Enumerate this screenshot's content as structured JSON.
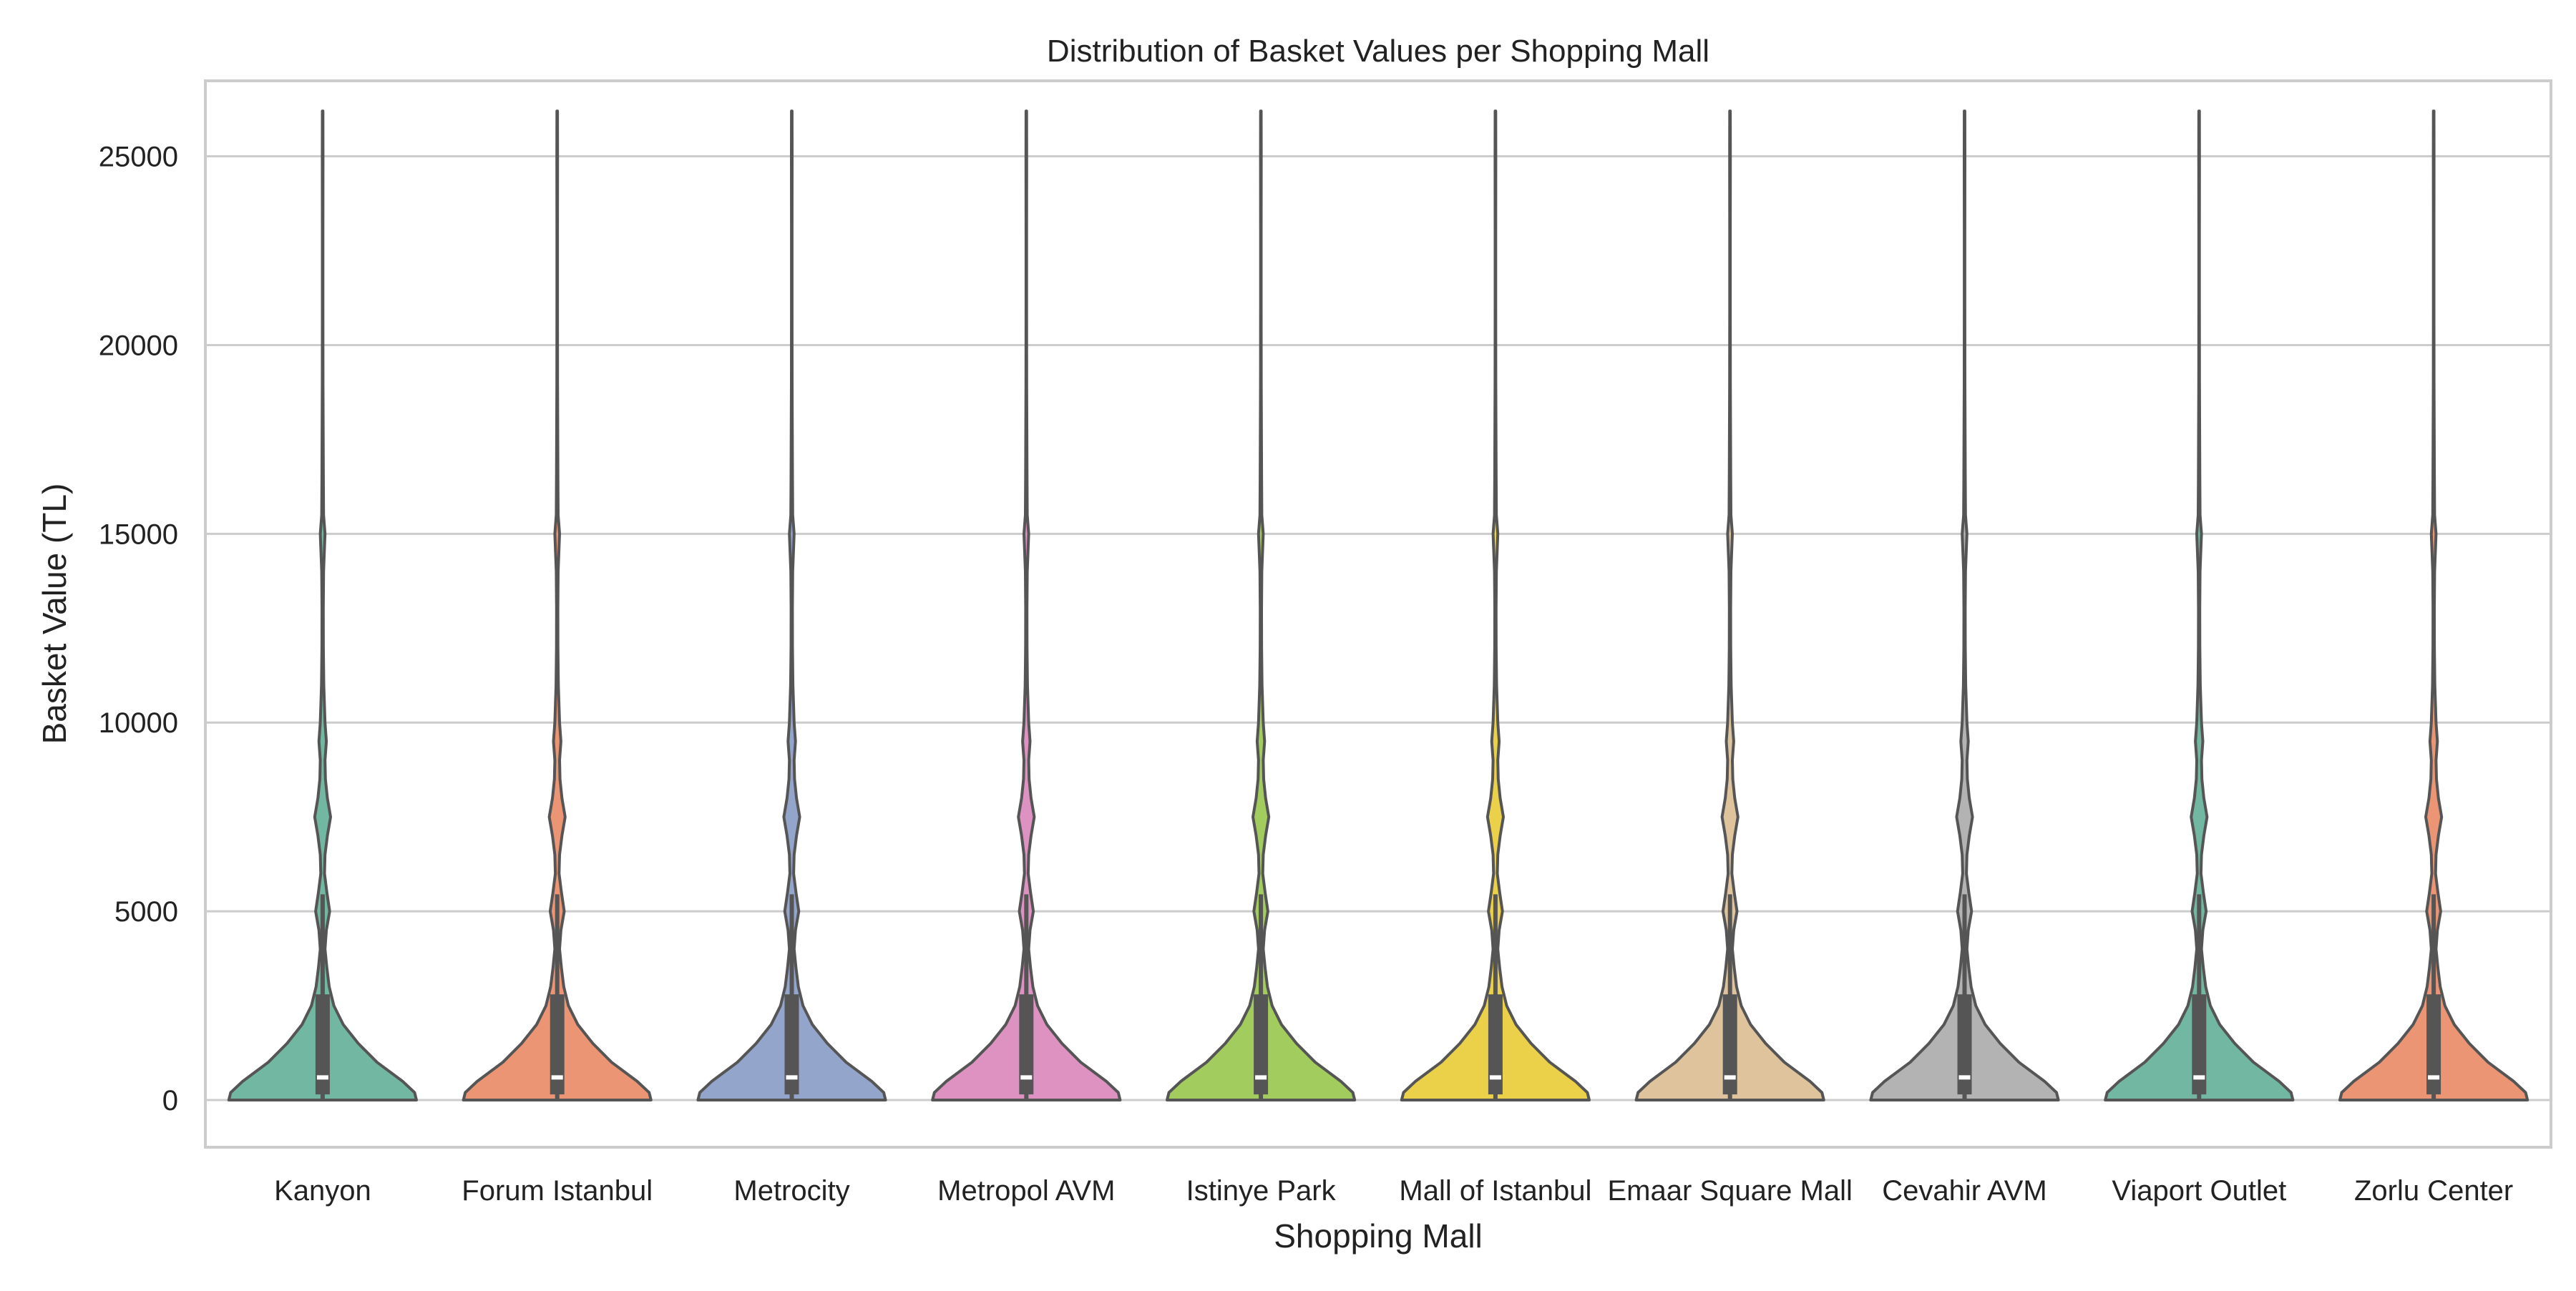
{
  "chart_data": {
    "type": "violin",
    "title": "Distribution of Basket Values per Shopping Mall",
    "xlabel": "Shopping Mall",
    "ylabel": "Basket Value (TL)",
    "ylim": [
      -1250,
      27000
    ],
    "yticks": [
      0,
      5000,
      10000,
      15000,
      20000,
      25000
    ],
    "grid": "horizontal",
    "legend": "none",
    "categories": [
      "Kanyon",
      "Forum Istanbul",
      "Metrocity",
      "Metropol AVM",
      "Istinye Park",
      "Mall of Istanbul",
      "Emaar Square Mall",
      "Cevahir AVM",
      "Viaport Outlet",
      "Zorlu Center"
    ],
    "colors": [
      "#72b7a1",
      "#ec9574",
      "#93a5cb",
      "#de92c2",
      "#a2cc5e",
      "#ebd04a",
      "#dfc39c",
      "#b3b3b3",
      "#72b7a1",
      "#ec9574"
    ],
    "outline_color": "#555555",
    "median_color": "#ffffff",
    "summary": {
      "min": 0,
      "q1": 150,
      "median": 600,
      "q3": 2800,
      "whisker_high": 5450,
      "max": 26200
    },
    "density_profile": [
      {
        "y": 0,
        "w": 1.0
      },
      {
        "y": 200,
        "w": 0.98
      },
      {
        "y": 500,
        "w": 0.85
      },
      {
        "y": 1000,
        "w": 0.58
      },
      {
        "y": 1500,
        "w": 0.38
      },
      {
        "y": 2000,
        "w": 0.22
      },
      {
        "y": 2500,
        "w": 0.12
      },
      {
        "y": 3000,
        "w": 0.07
      },
      {
        "y": 3500,
        "w": 0.045
      },
      {
        "y": 4000,
        "w": 0.025
      },
      {
        "y": 4500,
        "w": 0.04
      },
      {
        "y": 5000,
        "w": 0.075
      },
      {
        "y": 5500,
        "w": 0.045
      },
      {
        "y": 6000,
        "w": 0.02
      },
      {
        "y": 6500,
        "w": 0.025
      },
      {
        "y": 7000,
        "w": 0.05
      },
      {
        "y": 7500,
        "w": 0.085
      },
      {
        "y": 8000,
        "w": 0.05
      },
      {
        "y": 8500,
        "w": 0.03
      },
      {
        "y": 9000,
        "w": 0.025
      },
      {
        "y": 9500,
        "w": 0.04
      },
      {
        "y": 10000,
        "w": 0.025
      },
      {
        "y": 11000,
        "w": 0.012
      },
      {
        "y": 12000,
        "w": 0.008
      },
      {
        "y": 13000,
        "w": 0.007
      },
      {
        "y": 14000,
        "w": 0.01
      },
      {
        "y": 15000,
        "w": 0.025
      },
      {
        "y": 15500,
        "w": 0.01
      },
      {
        "y": 16500,
        "w": 0.008
      },
      {
        "y": 17500,
        "w": 0.006
      },
      {
        "y": 19000,
        "w": 0.004
      },
      {
        "y": 21000,
        "w": 0.003
      },
      {
        "y": 23000,
        "w": 0.003
      },
      {
        "y": 25000,
        "w": 0.004
      },
      {
        "y": 26200,
        "w": 0.003
      }
    ]
  }
}
